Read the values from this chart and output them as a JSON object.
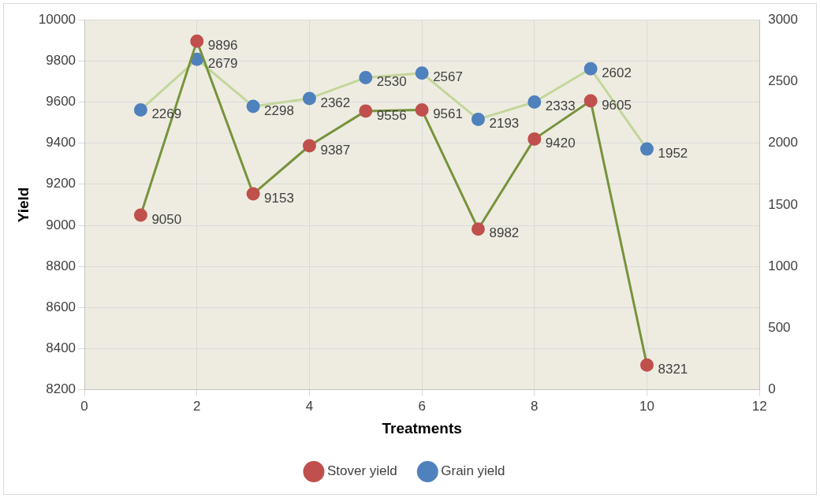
{
  "chart_data": {
    "type": "line",
    "xlabel": "Treatments",
    "ylabel": "Yield",
    "x": [
      1,
      2,
      3,
      4,
      5,
      6,
      7,
      8,
      9,
      10
    ],
    "series": [
      {
        "name": "Stover yield",
        "color": "#77933c",
        "colors": [
          "#c0504d",
          "#c0504d",
          "#c0504d",
          "#c0504d",
          "#c0504d",
          "#c0504d",
          "#c0504d",
          "#c0504d",
          "#c0504d",
          "#c0504d"
        ],
        "values": [
          9050,
          9896,
          9153,
          9387,
          9556,
          9561,
          8982,
          9420,
          9605,
          8321
        ]
      },
      {
        "name": "Grain yield",
        "color": "#c3d69b",
        "colors": [
          "#4f81bd",
          "#4f81bd",
          "#4f81bd",
          "#4f81bd",
          "#4f81bd",
          "#4f81bd",
          "#4f81bd",
          "#4f81bd",
          "#4f81bd",
          "#4f81bd"
        ],
        "axis": "y2",
        "values": [
          2269,
          2679,
          2298,
          2362,
          2530,
          2567,
          2193,
          2333,
          2602,
          1952
        ]
      }
    ],
    "xlim": [
      0,
      12
    ],
    "xticks": [
      0,
      2,
      4,
      6,
      8,
      10,
      12
    ],
    "ylim": [
      8200,
      10000
    ],
    "yticks": [
      8200,
      8400,
      8600,
      8800,
      9000,
      9200,
      9400,
      9600,
      9800,
      10000
    ],
    "y2lim": [
      0,
      3000
    ],
    "y2ticks": [
      0,
      500,
      1000,
      1500,
      2000,
      2500,
      3000
    ],
    "grid": true,
    "legend": "bottom",
    "marker": "circle",
    "line_style": "solid",
    "data_labels": true
  }
}
